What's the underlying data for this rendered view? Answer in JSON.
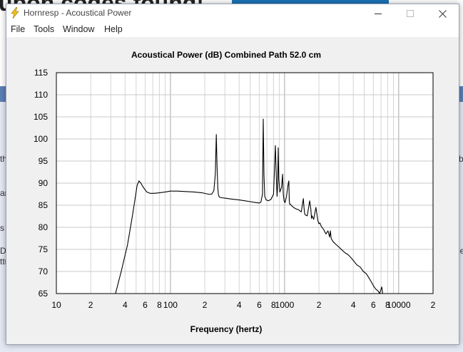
{
  "window": {
    "title": "Hornresp - Acoustical Power",
    "menu": [
      "File",
      "Tools",
      "Window",
      "Help"
    ]
  },
  "background": {
    "headline": "upon codes found!",
    "side_left": [
      "th",
      "ar",
      "s",
      "D",
      "ttu"
    ],
    "side_right": [
      "b",
      "le"
    ],
    "colors": {
      "band": "#5b7fb5",
      "lower": "#e4e8f3",
      "accent": "#1a73b8"
    }
  },
  "chart_data": {
    "type": "line",
    "title": "Acoustical Power (dB)   Combined   Path 52.0 cm",
    "xlabel": "Frequency (hertz)",
    "ylabel": "",
    "xscale": "log",
    "xlim": [
      10,
      20000
    ],
    "ylim": [
      65,
      115
    ],
    "yticks": [
      65,
      70,
      75,
      80,
      85,
      90,
      95,
      100,
      105,
      110,
      115
    ],
    "xticks": [
      {
        "v": 10,
        "label": "10"
      },
      {
        "v": 20,
        "label": "2"
      },
      {
        "v": 40,
        "label": "4"
      },
      {
        "v": 60,
        "label": "6"
      },
      {
        "v": 80,
        "label": "8"
      },
      {
        "v": 100,
        "label": "100"
      },
      {
        "v": 200,
        "label": "2"
      },
      {
        "v": 400,
        "label": "4"
      },
      {
        "v": 600,
        "label": "6"
      },
      {
        "v": 800,
        "label": "8"
      },
      {
        "v": 1000,
        "label": "1000"
      },
      {
        "v": 2000,
        "label": "2"
      },
      {
        "v": 4000,
        "label": "4"
      },
      {
        "v": 6000,
        "label": "6"
      },
      {
        "v": 8000,
        "label": "8"
      },
      {
        "v": 10000,
        "label": "10000"
      },
      {
        "v": 20000,
        "label": "2"
      }
    ],
    "grid": true,
    "line_color": "#000000",
    "series": [
      {
        "x": [
          33,
          37,
          42,
          46,
          49,
          51,
          53,
          55,
          58,
          62,
          66,
          72,
          80,
          90,
          100,
          115,
          135,
          160,
          190,
          215,
          230,
          240,
          247,
          252,
          256,
          260,
          263,
          266,
          270,
          280,
          300,
          340,
          400,
          450,
          500,
          560,
          600,
          620,
          640,
          650,
          660,
          670,
          690,
          720,
          760,
          800,
          830,
          850,
          860,
          870,
          880,
          890,
          910,
          940,
          960,
          975,
          990,
          1010,
          1040,
          1070,
          1090,
          1100,
          1110,
          1130,
          1160,
          1200,
          1250,
          1320,
          1400,
          1460,
          1480,
          1500,
          1520,
          1580,
          1660,
          1700,
          1720,
          1740,
          1800,
          1880,
          1960,
          2000,
          2040,
          2100,
          2200,
          2300,
          2400,
          2480,
          2520,
          2560,
          2650,
          2800,
          3000,
          3200,
          3400,
          3600,
          3800,
          4000,
          4300,
          4600,
          4900,
          5200,
          5500,
          5800,
          6100,
          6300,
          6600,
          6800,
          7100,
          7250
        ],
        "y": [
          65,
          70,
          76,
          82,
          86.5,
          89.5,
          90.5,
          90,
          89,
          88,
          87.7,
          87.7,
          87.8,
          88,
          88.2,
          88.2,
          88.1,
          88,
          87.8,
          87.5,
          87.5,
          88.3,
          92,
          101,
          94,
          89,
          87.5,
          87,
          86.8,
          86.7,
          86.6,
          86.4,
          86.2,
          86,
          85.8,
          85.6,
          85.5,
          85.7,
          87.5,
          104.5,
          92,
          87,
          86.2,
          86,
          86.3,
          87.5,
          98.5,
          90,
          87,
          89.5,
          98,
          91,
          88,
          89,
          92,
          87.5,
          86,
          85.6,
          87,
          89.5,
          90.5,
          86,
          85.2,
          85.2,
          84.8,
          84.5,
          84.2,
          84,
          83.5,
          86.5,
          84.5,
          83,
          82.8,
          82.6,
          86,
          84,
          82,
          82.6,
          81.8,
          84.5,
          81.5,
          80.8,
          81,
          80.2,
          79.5,
          78.5,
          79.2,
          77.8,
          79.2,
          77.5,
          76.8,
          76.2,
          75.5,
          74.8,
          74.2,
          73.8,
          73.2,
          72.5,
          71.5,
          71,
          70,
          69.5,
          68.5,
          67.5,
          66.5,
          66,
          65.6,
          65,
          66.5,
          64.8
        ]
      }
    ]
  }
}
